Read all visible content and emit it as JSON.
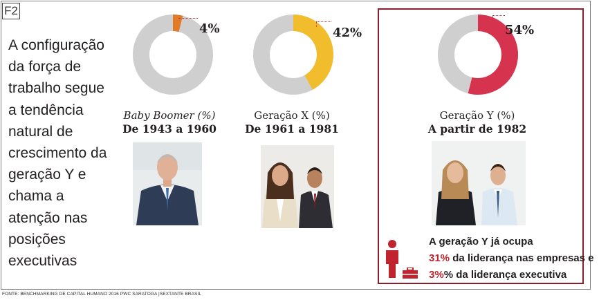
{
  "figure_tag": "F2",
  "intro_lines": [
    "A configuração",
    "da força de",
    "trabalho segue",
    "a tendência",
    "natural de",
    "crescimento da",
    "geração Y e",
    "chama a",
    "atenção nas",
    "posições",
    "executivas"
  ],
  "chart_data": [
    {
      "type": "pie",
      "label": "Baby Boomer (%)",
      "subtitle": "De 1943 a 1960",
      "percent_label": "4%",
      "value": 4,
      "color": "#e07b2a",
      "track_color": "#cfcfcf"
    },
    {
      "type": "pie",
      "label": "Geração X (%)",
      "subtitle": "De 1961 a 1981",
      "percent_label": "42%",
      "value": 42,
      "color": "#f2bd2c",
      "track_color": "#cfcfcf"
    },
    {
      "type": "pie",
      "label": "Geração Y (%)",
      "subtitle": "A partir de 1982",
      "percent_label": "54%",
      "value": 54,
      "color": "#d6334f",
      "track_color": "#cfcfcf"
    }
  ],
  "stats": {
    "line1": "A geração Y já ocupa",
    "line2_num": "31%",
    "line2_text": " da liderança nas empresas e",
    "line3_num": "3%",
    "line3_text": "% da liderança executiva"
  },
  "icons": [
    "person-icon",
    "briefcase-icon"
  ],
  "colors": {
    "accent": "#c0242f",
    "box_border": "#8b1e2b"
  },
  "source": "FONTE: BENCHMARKING DE CAPITAL HUMANO 2016    PWC SARATOGA |SEXTANTE BRASIL"
}
